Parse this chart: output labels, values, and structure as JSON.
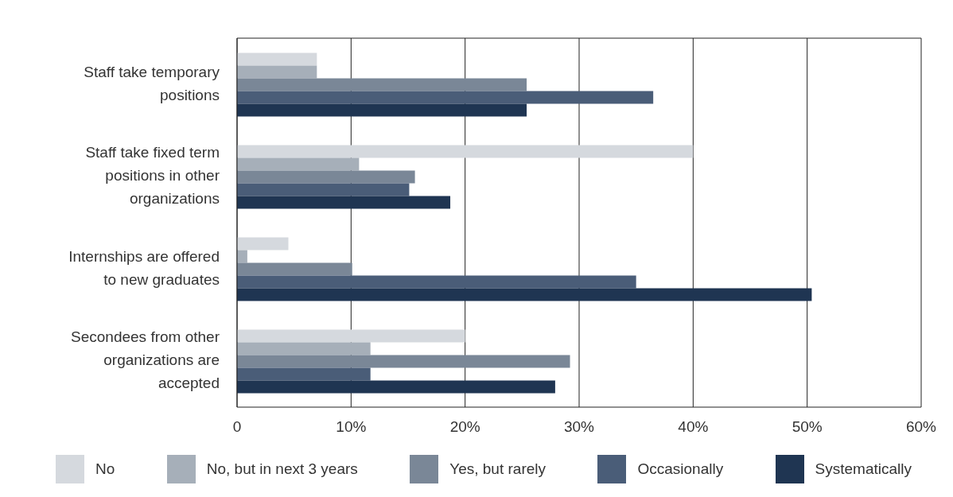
{
  "chart_data": {
    "type": "bar",
    "orientation": "horizontal",
    "categories": [
      "Staff take temporary positions",
      "Staff take fixed term positions in other organizations",
      "Internships are offered to new graduates",
      "Secondees from other organizations are accepted"
    ],
    "series": [
      {
        "name": "No",
        "color": "#d5d9de",
        "values": [
          7,
          40,
          4.5,
          20
        ]
      },
      {
        "name": "No, but in next 3 years",
        "color": "#a6afb9",
        "values": [
          7,
          10.7,
          0.9,
          11.7
        ]
      },
      {
        "name": "Yes, but rarely",
        "color": "#7a8797",
        "values": [
          25.4,
          15.6,
          10.1,
          29.2
        ]
      },
      {
        "name": "Occasionally",
        "color": "#4a5d78",
        "values": [
          36.5,
          15.1,
          35,
          11.7
        ]
      },
      {
        "name": "Systematically",
        "color": "#1f3552",
        "values": [
          25.4,
          18.7,
          50.4,
          27.9
        ]
      }
    ],
    "xlim": [
      0,
      60
    ],
    "xticks": [
      0,
      {
        "value": 10,
        "label": "10%"
      },
      {
        "value": 20,
        "label": "20%"
      },
      {
        "value": 30,
        "label": "30%"
      },
      {
        "value": 40,
        "label": "40%"
      },
      {
        "value": 50,
        "label": "50%"
      },
      {
        "value": 60,
        "label": "60%"
      }
    ],
    "grid": "x",
    "legend": "bottom"
  }
}
